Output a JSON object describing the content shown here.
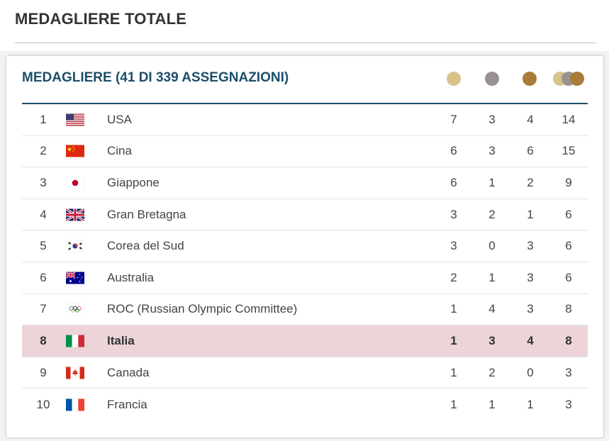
{
  "page_title": "MEDAGLIERE TOTALE",
  "card_title": "MEDAGLIERE  (41 DI 339 ASSEGNAZIONI)",
  "medal_icons": {
    "gold": "#d8c38a",
    "silver": "#9a9292",
    "bronze": "#a97c38"
  },
  "highlight_color": "#ecd4d8",
  "rows": [
    {
      "rank": "1",
      "country": "USA",
      "gold": "7",
      "silver": "3",
      "bronze": "4",
      "total": "14",
      "flag": "usa-flag-icon"
    },
    {
      "rank": "2",
      "country": "Cina",
      "gold": "6",
      "silver": "3",
      "bronze": "6",
      "total": "15",
      "flag": "china-flag-icon"
    },
    {
      "rank": "3",
      "country": "Giappone",
      "gold": "6",
      "silver": "1",
      "bronze": "2",
      "total": "9",
      "flag": "japan-flag-icon"
    },
    {
      "rank": "4",
      "country": "Gran Bretagna",
      "gold": "3",
      "silver": "2",
      "bronze": "1",
      "total": "6",
      "flag": "uk-flag-icon"
    },
    {
      "rank": "5",
      "country": "Corea del Sud",
      "gold": "3",
      "silver": "0",
      "bronze": "3",
      "total": "6",
      "flag": "south-korea-flag-icon"
    },
    {
      "rank": "6",
      "country": "Australia",
      "gold": "2",
      "silver": "1",
      "bronze": "3",
      "total": "6",
      "flag": "australia-flag-icon"
    },
    {
      "rank": "7",
      "country": "ROC (Russian Olympic Committee)",
      "gold": "1",
      "silver": "4",
      "bronze": "3",
      "total": "8",
      "flag": "olympic-rings-flag-icon"
    },
    {
      "rank": "8",
      "country": "Italia",
      "gold": "1",
      "silver": "3",
      "bronze": "4",
      "total": "8",
      "flag": "italy-flag-icon",
      "highlight": true
    },
    {
      "rank": "9",
      "country": "Canada",
      "gold": "1",
      "silver": "2",
      "bronze": "0",
      "total": "3",
      "flag": "canada-flag-icon"
    },
    {
      "rank": "10",
      "country": "Francia",
      "gold": "1",
      "silver": "1",
      "bronze": "1",
      "total": "3",
      "flag": "france-flag-icon"
    }
  ]
}
